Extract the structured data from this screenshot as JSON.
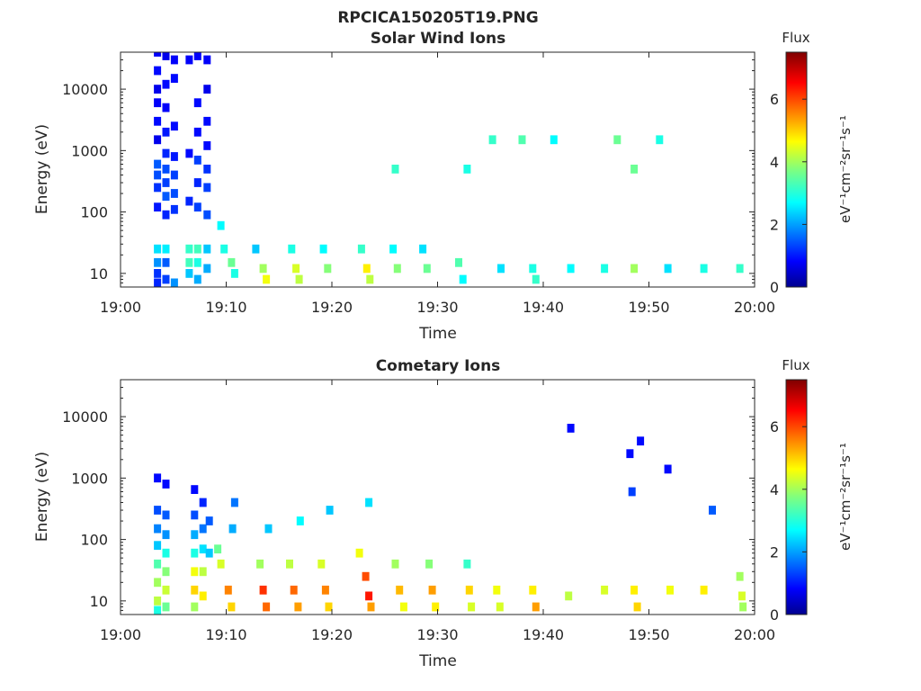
{
  "figure_title": "RPCICA150205T19.PNG",
  "chart_data": [
    {
      "type": "heatmap",
      "title": "Solar Wind Ions",
      "xlabel": "Time",
      "ylabel": "Energy (eV)",
      "x_ticks": [
        "19:00",
        "19:10",
        "19:20",
        "19:30",
        "19:40",
        "19:50",
        "20:00"
      ],
      "x_range_minutes": [
        0,
        60
      ],
      "y_scale": "log",
      "y_range": [
        6,
        40000
      ],
      "y_ticks": [
        10,
        100,
        1000,
        10000
      ],
      "y_tick_labels": [
        "10",
        "100",
        "1000",
        "10000"
      ],
      "colorbar": {
        "label": "Flux",
        "units": "eV⁻¹cm⁻²sr⁻¹s⁻¹",
        "range": [
          0,
          7.5
        ],
        "ticks": [
          0,
          2,
          4,
          6
        ],
        "colormap": "jet"
      },
      "grid": false,
      "cells": [
        [
          3.5,
          40000,
          0.9
        ],
        [
          3.5,
          20000,
          1.0
        ],
        [
          3.5,
          10000,
          0.8
        ],
        [
          3.5,
          6000,
          0.9
        ],
        [
          3.5,
          3000,
          1.0
        ],
        [
          3.5,
          1500,
          0.8
        ],
        [
          3.5,
          600,
          1.6
        ],
        [
          3.5,
          400,
          1.5
        ],
        [
          3.5,
          250,
          1.3
        ],
        [
          3.5,
          120,
          1.1
        ],
        [
          3.5,
          25,
          2.6
        ],
        [
          3.5,
          15,
          2.0
        ],
        [
          3.5,
          10,
          1.3
        ],
        [
          3.5,
          7,
          1.2
        ],
        [
          4.3,
          35000,
          0.8
        ],
        [
          4.3,
          12000,
          1.0
        ],
        [
          4.3,
          5000,
          0.9
        ],
        [
          4.3,
          2000,
          1.1
        ],
        [
          4.3,
          900,
          1.2
        ],
        [
          4.3,
          500,
          1.5
        ],
        [
          4.3,
          300,
          1.4
        ],
        [
          4.3,
          180,
          1.6
        ],
        [
          4.3,
          90,
          1.2
        ],
        [
          4.3,
          25,
          2.7
        ],
        [
          4.3,
          15,
          1.6
        ],
        [
          4.3,
          8,
          1.4
        ],
        [
          5.1,
          30000,
          0.9
        ],
        [
          5.1,
          15000,
          1.0
        ],
        [
          5.1,
          2500,
          1.0
        ],
        [
          5.1,
          800,
          1.1
        ],
        [
          5.1,
          400,
          1.4
        ],
        [
          5.1,
          200,
          1.5
        ],
        [
          5.1,
          110,
          1.3
        ],
        [
          5.1,
          7,
          2.0
        ],
        [
          6.5,
          30000,
          0.9
        ],
        [
          6.5,
          900,
          1.0
        ],
        [
          6.5,
          150,
          1.2
        ],
        [
          6.5,
          25,
          3.2
        ],
        [
          6.5,
          15,
          3.3
        ],
        [
          6.5,
          10,
          2.4
        ],
        [
          7.3,
          35000,
          0.9
        ],
        [
          7.3,
          6000,
          1.0
        ],
        [
          7.3,
          2000,
          1.0
        ],
        [
          7.3,
          700,
          1.4
        ],
        [
          7.3,
          300,
          1.2
        ],
        [
          7.3,
          120,
          1.4
        ],
        [
          7.3,
          25,
          3.3
        ],
        [
          7.3,
          15,
          3.0
        ],
        [
          7.3,
          8,
          2.2
        ],
        [
          8.2,
          30000,
          0.9
        ],
        [
          8.2,
          10000,
          0.8
        ],
        [
          8.2,
          3000,
          1.0
        ],
        [
          8.2,
          1200,
          1.0
        ],
        [
          8.2,
          500,
          1.3
        ],
        [
          8.2,
          250,
          1.4
        ],
        [
          8.2,
          90,
          1.5
        ],
        [
          8.2,
          25,
          2.4
        ],
        [
          8.2,
          12,
          2.2
        ],
        [
          9.5,
          60,
          2.8
        ],
        [
          9.8,
          25,
          3.0
        ],
        [
          10.5,
          15,
          3.6
        ],
        [
          10.8,
          10,
          3.0
        ],
        [
          12.8,
          25,
          2.4
        ],
        [
          13.5,
          12,
          4.0
        ],
        [
          13.8,
          8,
          4.6
        ],
        [
          16.2,
          25,
          3.0
        ],
        [
          16.6,
          12,
          4.4
        ],
        [
          16.9,
          8,
          4.2
        ],
        [
          19.2,
          25,
          2.8
        ],
        [
          19.6,
          12,
          3.8
        ],
        [
          22.8,
          25,
          3.2
        ],
        [
          23.3,
          12,
          4.8
        ],
        [
          23.6,
          8,
          4.2
        ],
        [
          25.8,
          25,
          2.8
        ],
        [
          26.2,
          12,
          3.8
        ],
        [
          28.6,
          25,
          2.6
        ],
        [
          29.0,
          12,
          3.6
        ],
        [
          32.0,
          15,
          3.4
        ],
        [
          32.4,
          8,
          2.8
        ],
        [
          36.0,
          12,
          2.6
        ],
        [
          39.0,
          12,
          3.0
        ],
        [
          39.3,
          8,
          3.2
        ],
        [
          42.6,
          12,
          2.8
        ],
        [
          45.8,
          12,
          3.0
        ],
        [
          48.6,
          12,
          4.0
        ],
        [
          51.8,
          12,
          2.6
        ],
        [
          55.2,
          12,
          3.0
        ],
        [
          58.6,
          12,
          3.2
        ],
        [
          35.2,
          1500,
          3.2
        ],
        [
          38.0,
          1500,
          3.4
        ],
        [
          41.0,
          1500,
          2.8
        ],
        [
          47.0,
          1500,
          3.6
        ],
        [
          51.0,
          1500,
          3.0
        ],
        [
          26.0,
          500,
          3.2
        ],
        [
          32.8,
          500,
          3.0
        ],
        [
          48.6,
          500,
          3.6
        ]
      ]
    },
    {
      "type": "heatmap",
      "title": "Cometary Ions",
      "xlabel": "Time",
      "ylabel": "Energy (eV)",
      "x_ticks": [
        "19:00",
        "19:10",
        "19:20",
        "19:30",
        "19:40",
        "19:50",
        "20:00"
      ],
      "x_range_minutes": [
        0,
        60
      ],
      "y_scale": "log",
      "y_range": [
        6,
        40000
      ],
      "y_ticks": [
        10,
        100,
        1000,
        10000
      ],
      "y_tick_labels": [
        "10",
        "100",
        "1000",
        "10000"
      ],
      "colorbar": {
        "label": "Flux",
        "units": "eV⁻¹cm⁻²sr⁻¹s⁻¹",
        "range": [
          0,
          7.5
        ],
        "ticks": [
          0,
          2,
          4,
          6
        ],
        "colormap": "jet"
      },
      "grid": false,
      "cells": [
        [
          3.5,
          1000,
          1.0
        ],
        [
          3.5,
          300,
          1.5
        ],
        [
          3.5,
          150,
          1.9
        ],
        [
          3.5,
          80,
          2.4
        ],
        [
          3.5,
          40,
          3.4
        ],
        [
          3.5,
          20,
          4.0
        ],
        [
          3.5,
          10,
          4.2
        ],
        [
          3.5,
          7,
          3.0
        ],
        [
          4.3,
          800,
          1.0
        ],
        [
          4.3,
          250,
          1.6
        ],
        [
          4.3,
          120,
          2.0
        ],
        [
          4.3,
          60,
          3.0
        ],
        [
          4.3,
          30,
          3.8
        ],
        [
          4.3,
          15,
          4.3
        ],
        [
          4.3,
          8,
          3.6
        ],
        [
          7.0,
          650,
          1.0
        ],
        [
          7.0,
          250,
          1.5
        ],
        [
          7.0,
          120,
          2.2
        ],
        [
          7.0,
          60,
          3.0
        ],
        [
          7.0,
          30,
          4.6
        ],
        [
          7.0,
          15,
          5.0
        ],
        [
          7.0,
          8,
          4.0
        ],
        [
          7.8,
          400,
          1.2
        ],
        [
          7.8,
          150,
          1.8
        ],
        [
          7.8,
          70,
          2.6
        ],
        [
          7.8,
          30,
          4.2
        ],
        [
          7.8,
          12,
          4.8
        ],
        [
          8.4,
          200,
          1.6
        ],
        [
          8.4,
          60,
          2.4
        ],
        [
          9.2,
          70,
          3.6
        ],
        [
          9.5,
          40,
          4.4
        ],
        [
          10.2,
          15,
          5.6
        ],
        [
          10.5,
          8,
          5.0
        ],
        [
          10.6,
          150,
          2.2
        ],
        [
          10.8,
          400,
          1.8
        ],
        [
          13.2,
          40,
          4.0
        ],
        [
          13.5,
          15,
          6.2
        ],
        [
          13.8,
          8,
          5.8
        ],
        [
          14.0,
          150,
          2.4
        ],
        [
          16.0,
          40,
          4.2
        ],
        [
          16.4,
          15,
          5.8
        ],
        [
          16.8,
          8,
          5.4
        ],
        [
          17.0,
          200,
          2.8
        ],
        [
          19.0,
          40,
          4.4
        ],
        [
          19.4,
          15,
          5.6
        ],
        [
          19.7,
          8,
          5.0
        ],
        [
          19.8,
          300,
          2.4
        ],
        [
          22.6,
          60,
          4.6
        ],
        [
          23.2,
          25,
          6.0
        ],
        [
          23.5,
          12,
          6.4
        ],
        [
          23.7,
          8,
          5.4
        ],
        [
          23.5,
          400,
          2.6
        ],
        [
          26.0,
          40,
          4.0
        ],
        [
          26.4,
          15,
          5.2
        ],
        [
          26.8,
          8,
          4.6
        ],
        [
          29.2,
          40,
          3.8
        ],
        [
          29.5,
          15,
          5.4
        ],
        [
          29.8,
          8,
          4.8
        ],
        [
          32.8,
          40,
          3.2
        ],
        [
          33.0,
          15,
          5.0
        ],
        [
          33.2,
          8,
          4.4
        ],
        [
          35.6,
          15,
          4.6
        ],
        [
          35.9,
          8,
          4.4
        ],
        [
          39.0,
          15,
          4.8
        ],
        [
          39.3,
          8,
          5.4
        ],
        [
          42.4,
          12,
          4.2
        ],
        [
          45.8,
          15,
          4.4
        ],
        [
          48.6,
          15,
          4.8
        ],
        [
          48.9,
          8,
          5.0
        ],
        [
          52.0,
          15,
          4.6
        ],
        [
          55.2,
          15,
          4.8
        ],
        [
          58.6,
          25,
          4.0
        ],
        [
          58.8,
          12,
          4.4
        ],
        [
          58.9,
          8,
          4.0
        ],
        [
          42.6,
          6500,
          1.0
        ],
        [
          48.2,
          2500,
          1.0
        ],
        [
          49.2,
          4000,
          1.0
        ],
        [
          48.4,
          600,
          1.4
        ],
        [
          51.8,
          1400,
          1.0
        ],
        [
          56.0,
          300,
          1.6
        ]
      ]
    }
  ]
}
